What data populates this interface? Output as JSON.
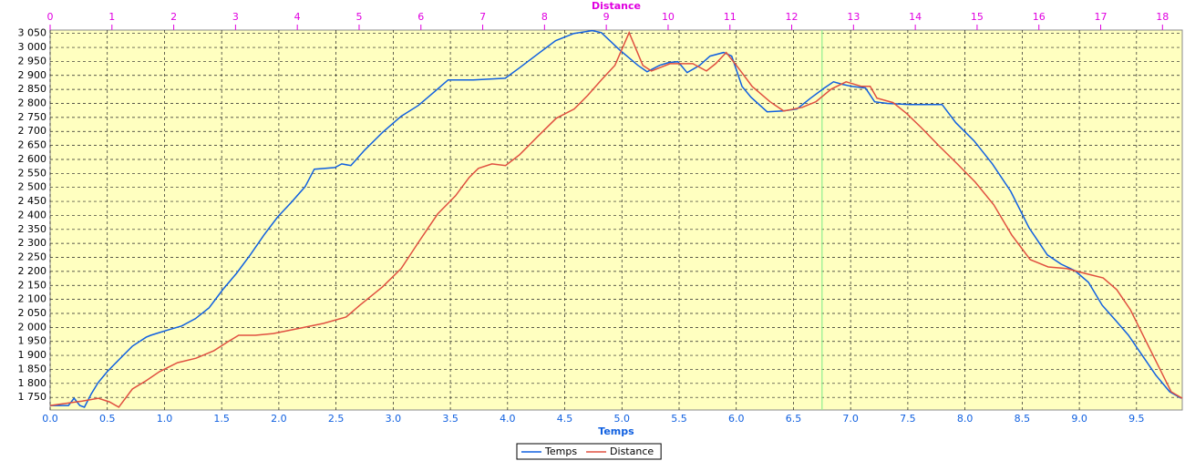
{
  "chart_data": {
    "type": "line",
    "xlabel": "Temps",
    "x2label": "Distance",
    "xlim": [
      0,
      9.9
    ],
    "x2lim": [
      0,
      18.32
    ],
    "ylim": [
      1705,
      3062
    ],
    "xticks": [
      {
        "value": 0,
        "label": "0.0"
      },
      0.5,
      {
        "value": 1,
        "label": "1.0"
      },
      1.5,
      {
        "value": 2,
        "label": "2.0"
      },
      2.5,
      {
        "value": 3,
        "label": "3.0"
      },
      3.5,
      {
        "value": 4,
        "label": "4.0"
      },
      4.5,
      {
        "value": 5,
        "label": "5.0"
      },
      5.5,
      {
        "value": 6,
        "label": "6.0"
      },
      6.5,
      {
        "value": 7,
        "label": "7.0"
      },
      7.5,
      {
        "value": 8,
        "label": "8.0"
      },
      8.5,
      {
        "value": 9,
        "label": "9.0"
      },
      9.5
    ],
    "x2ticks": [
      0,
      1,
      2,
      3,
      4,
      5,
      6,
      7,
      8,
      9,
      10,
      11,
      12,
      13,
      14,
      15,
      16,
      17,
      18
    ],
    "yticks": [
      {
        "value": 1750,
        "label": "1 750"
      },
      {
        "value": 1800,
        "label": "1 800"
      },
      {
        "value": 1850,
        "label": "1 850"
      },
      {
        "value": 1900,
        "label": "1 900"
      },
      {
        "value": 1950,
        "label": "1 950"
      },
      {
        "value": 2000,
        "label": "2 000"
      },
      {
        "value": 2050,
        "label": "2 050"
      },
      {
        "value": 2100,
        "label": "2 100"
      },
      {
        "value": 2150,
        "label": "2 150"
      },
      {
        "value": 2200,
        "label": "2 200"
      },
      {
        "value": 2250,
        "label": "2 250"
      },
      {
        "value": 2300,
        "label": "2 300"
      },
      {
        "value": 2350,
        "label": "2 350"
      },
      {
        "value": 2400,
        "label": "2 400"
      },
      {
        "value": 2450,
        "label": "2 450"
      },
      {
        "value": 2500,
        "label": "2 500"
      },
      {
        "value": 2550,
        "label": "2 550"
      },
      {
        "value": 2600,
        "label": "2 600"
      },
      {
        "value": 2650,
        "label": "2 650"
      },
      {
        "value": 2700,
        "label": "2 700"
      },
      {
        "value": 2750,
        "label": "2 750"
      },
      {
        "value": 2800,
        "label": "2 800"
      },
      {
        "value": 2850,
        "label": "2 850"
      },
      {
        "value": 2900,
        "label": "2 900"
      },
      {
        "value": 2950,
        "label": "2 950"
      },
      {
        "value": 3000,
        "label": "3 000"
      },
      {
        "value": 3050,
        "label": "3 050"
      }
    ],
    "grid": true,
    "legend": "bottom",
    "background": "#ffffc0",
    "vline": {
      "x": 6.75,
      "color": "#90ee90"
    },
    "series": [
      {
        "name": "Temps",
        "color": "#1060e0",
        "axis": "x",
        "x": [
          0,
          0.16,
          0.21,
          0.26,
          0.3,
          0.36,
          0.42,
          0.5,
          0.6,
          0.72,
          0.84,
          0.88,
          0.96,
          1.04,
          1.15,
          1.27,
          1.39,
          1.51,
          1.63,
          1.75,
          1.87,
          1.99,
          2.11,
          2.23,
          2.31,
          2.49,
          2.55,
          2.63,
          2.75,
          2.91,
          3.07,
          3.22,
          3.37,
          3.48,
          3.7,
          3.98,
          4.1,
          4.26,
          4.42,
          4.58,
          4.74,
          4.82,
          4.98,
          5.14,
          5.22,
          5.33,
          5.41,
          5.49,
          5.57,
          5.68,
          5.77,
          5.89,
          5.96,
          6.05,
          6.13,
          6.27,
          6.41,
          6.53,
          6.65,
          6.77,
          6.85,
          6.93,
          7.01,
          7.13,
          7.21,
          7.32,
          7.52,
          7.8,
          7.92,
          8.08,
          8.24,
          8.4,
          8.56,
          8.72,
          8.84,
          8.96,
          9.08,
          9.2,
          9.32,
          9.43,
          9.55,
          9.67,
          9.79,
          9.89
        ],
        "values": [
          1721,
          1721,
          1747,
          1721,
          1715,
          1763,
          1803,
          1842,
          1884,
          1933,
          1965,
          1972,
          1982,
          1992,
          2005,
          2031,
          2070,
          2135,
          2193,
          2259,
          2330,
          2395,
          2447,
          2503,
          2565,
          2571,
          2584,
          2578,
          2633,
          2698,
          2754,
          2793,
          2845,
          2884,
          2884,
          2890,
          2926,
          2975,
          3024,
          3050,
          3060,
          3053,
          2991,
          2936,
          2913,
          2936,
          2946,
          2949,
          2910,
          2936,
          2969,
          2982,
          2969,
          2861,
          2822,
          2770,
          2773,
          2780,
          2819,
          2855,
          2877,
          2868,
          2861,
          2855,
          2806,
          2800,
          2796,
          2796,
          2731,
          2666,
          2584,
          2486,
          2356,
          2259,
          2226,
          2203,
          2161,
          2079,
          2024,
          1972,
          1900,
          1829,
          1770,
          1747
        ]
      },
      {
        "name": "Distance",
        "color": "#e05040",
        "axis": "x2",
        "x": [
          0,
          0.52,
          0.78,
          0.96,
          1.11,
          1.33,
          1.55,
          1.77,
          2.06,
          2.36,
          2.65,
          2.88,
          3.05,
          3.32,
          3.61,
          4.06,
          4.42,
          4.79,
          5.01,
          5.38,
          5.68,
          5.97,
          6.27,
          6.56,
          6.78,
          6.93,
          7.15,
          7.37,
          7.6,
          7.89,
          8.19,
          8.48,
          8.7,
          8.92,
          9.14,
          9.37,
          9.59,
          9.73,
          10.03,
          10.4,
          10.62,
          10.77,
          10.94,
          11.14,
          11.36,
          11.65,
          11.87,
          12.17,
          12.39,
          12.64,
          12.88,
          13.13,
          13.27,
          13.38,
          13.64,
          13.86,
          14.09,
          14.38,
          14.68,
          14.97,
          15.27,
          15.56,
          15.86,
          16.15,
          16.45,
          16.74,
          17.04,
          17.26,
          17.48,
          17.7,
          17.92,
          18.14,
          18.32
        ],
        "values": [
          1721,
          1737,
          1747,
          1734,
          1715,
          1780,
          1809,
          1842,
          1874,
          1890,
          1917,
          1949,
          1972,
          1972,
          1978,
          1998,
          2014,
          2037,
          2079,
          2145,
          2210,
          2307,
          2405,
          2470,
          2535,
          2568,
          2584,
          2578,
          2617,
          2682,
          2747,
          2780,
          2829,
          2884,
          2936,
          3053,
          2936,
          2916,
          2942,
          2942,
          2916,
          2942,
          2982,
          2926,
          2861,
          2806,
          2773,
          2786,
          2806,
          2851,
          2877,
          2861,
          2861,
          2819,
          2803,
          2764,
          2715,
          2649,
          2584,
          2519,
          2438,
          2330,
          2242,
          2216,
          2210,
          2193,
          2177,
          2135,
          2063,
          1965,
          1868,
          1770,
          1747
        ]
      }
    ]
  }
}
